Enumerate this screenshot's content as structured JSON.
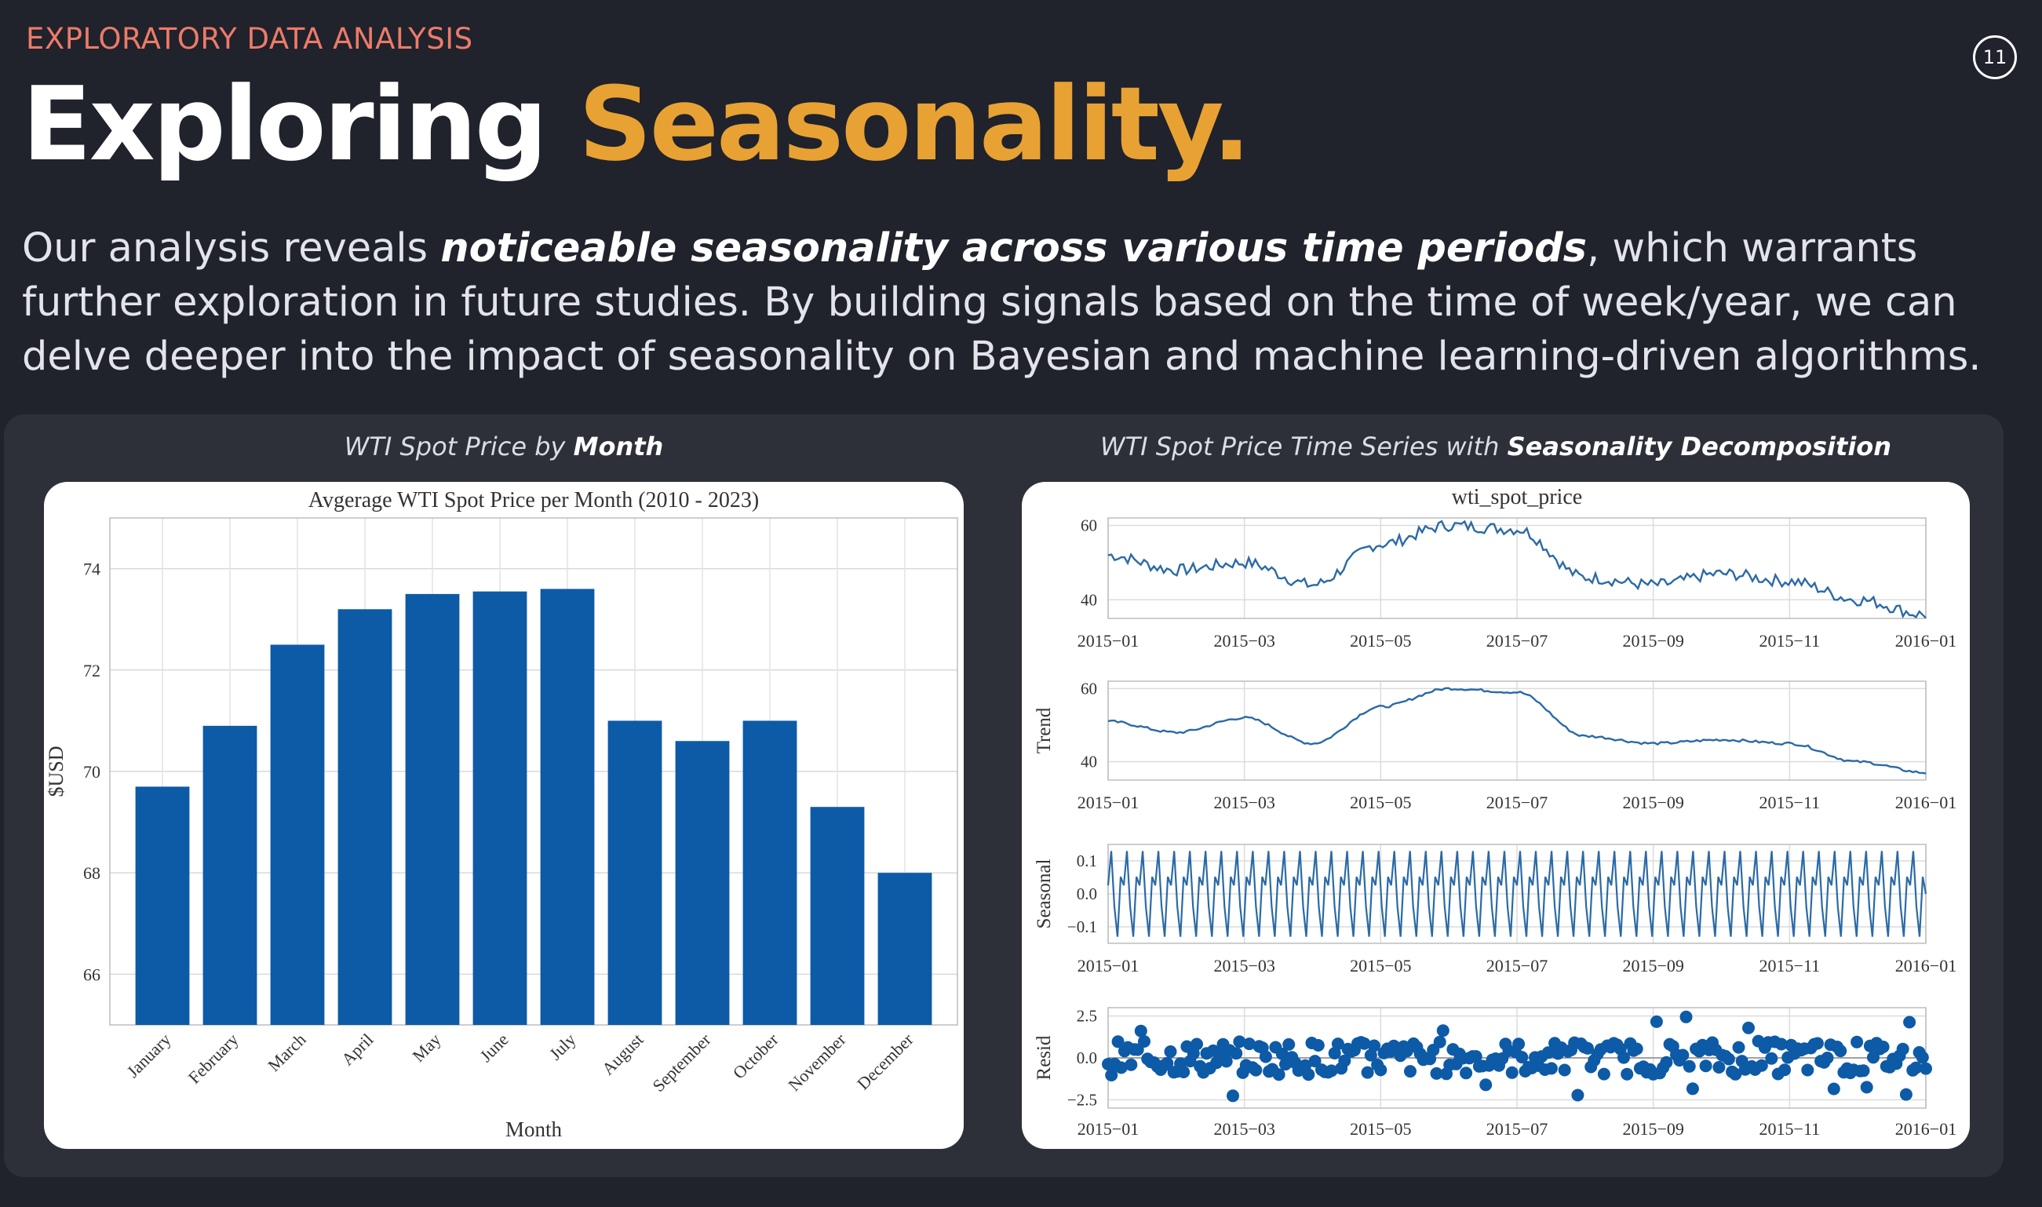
{
  "header": {
    "eyebrow": "EXPLORATORY DATA ANALYSIS",
    "title_part1": "Exploring ",
    "title_part2": "Seasonality.",
    "page_number": "11"
  },
  "intro": {
    "part1": "Our analysis reveals ",
    "emphasis": "noticeable seasonality across various time periods",
    "part2": ", which warrants further exploration in future studies. By building signals based on the time of week/year, we can delve deeper into the impact of seasonality on Bayesian and machine learning-driven algorithms."
  },
  "captions": {
    "left_prefix": "WTI Spot Price by ",
    "left_emphasis": "Month",
    "right_prefix": "WTI Spot Price Time Series with ",
    "right_emphasis": "Seasonality Decomposition"
  },
  "colors": {
    "bar": "#0d5aa7",
    "line": "#2b6aa6",
    "resid_point": "#0d5aa7",
    "accent": "#e8a233",
    "eyebrow": "#ec7b68"
  },
  "chart_data": [
    {
      "type": "bar",
      "title": "Avgerage WTI Spot Price per Month (2010 - 2023)",
      "xlabel": "Month",
      "ylabel": "$USD",
      "categories": [
        "January",
        "February",
        "March",
        "April",
        "May",
        "June",
        "July",
        "August",
        "September",
        "October",
        "November",
        "December"
      ],
      "values": [
        69.7,
        70.9,
        72.5,
        73.2,
        73.5,
        73.55,
        73.6,
        71.0,
        70.6,
        71.0,
        69.3,
        68.0
      ],
      "ylim": [
        65,
        75
      ],
      "yticks": [
        66,
        68,
        70,
        72,
        74
      ],
      "grid": true
    },
    {
      "type": "line",
      "title": "wti_spot_price",
      "x_ticks": [
        "2015−01",
        "2015−03",
        "2015−05",
        "2015−07",
        "2015−09",
        "2015−11",
        "2016−01"
      ],
      "panels": [
        {
          "label": "",
          "ylim": [
            35,
            62
          ],
          "yticks": [
            "60",
            "40"
          ],
          "ytick_values": [
            60,
            40
          ],
          "x": [
            "2015-01",
            "2015-02",
            "2015-03",
            "2015-04",
            "2015-05",
            "2015-06",
            "2015-07",
            "2015-08",
            "2015-09",
            "2015-10",
            "2015-11",
            "2015-12",
            "2016-01"
          ],
          "values": [
            52,
            48,
            50,
            44,
            55,
            60,
            59,
            46,
            44,
            47,
            45,
            40,
            36
          ]
        },
        {
          "label": "Trend",
          "ylim": [
            35,
            62
          ],
          "yticks": [
            "60",
            "40"
          ],
          "ytick_values": [
            60,
            40
          ],
          "x": [
            "2015-01",
            "2015-02",
            "2015-03",
            "2015-04",
            "2015-05",
            "2015-06",
            "2015-07",
            "2015-08",
            "2015-09",
            "2015-10",
            "2015-11",
            "2015-12",
            "2016-01"
          ],
          "values": [
            51,
            48,
            52,
            45,
            55,
            60,
            59,
            47,
            45,
            46,
            45,
            40,
            37
          ]
        },
        {
          "label": "Seasonal",
          "ylim": [
            -0.15,
            0.15
          ],
          "yticks": [
            "0.1",
            "0.0",
            "−0.1"
          ],
          "ytick_values": [
            0.1,
            0.0,
            -0.1
          ],
          "amplitude": 0.13,
          "cycles": 52
        },
        {
          "label": "Resid",
          "ylim": [
            -3.0,
            3.0
          ],
          "yticks": [
            "2.5",
            "0.0",
            "−2.5"
          ],
          "ytick_values": [
            2.5,
            0.0,
            -2.5
          ]
        }
      ]
    }
  ]
}
